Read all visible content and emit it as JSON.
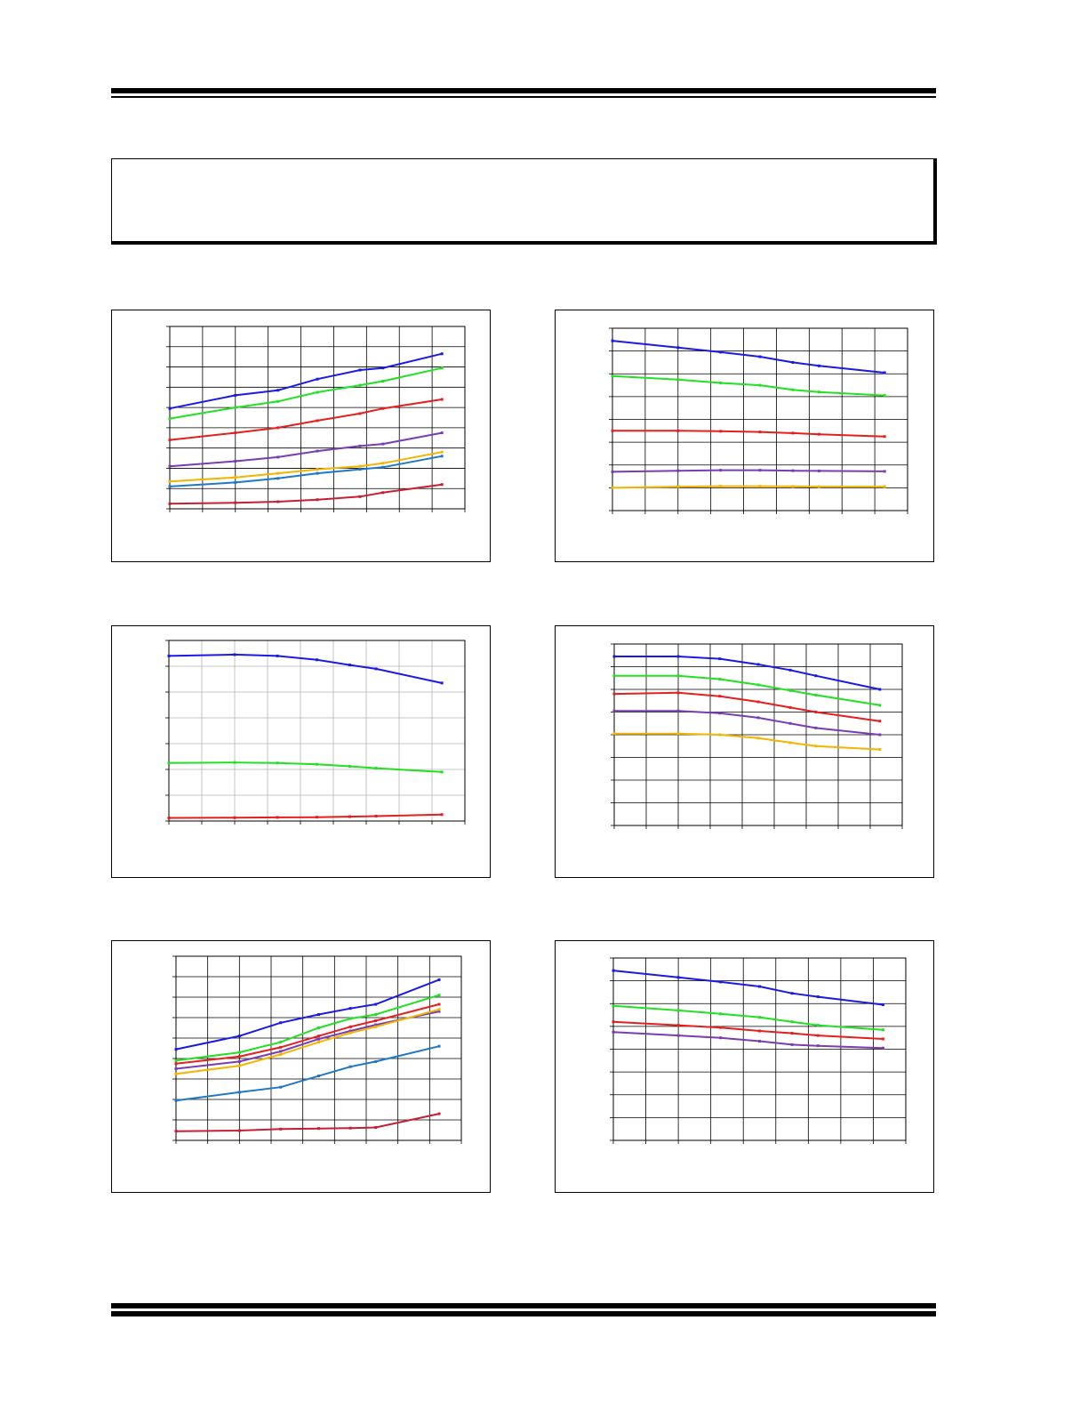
{
  "page": {
    "header_text": "",
    "note_text": "",
    "footer_text": ""
  },
  "colors": {
    "blue": "#1a1ae6",
    "green": "#22e022",
    "red": "#e61e1e",
    "purple": "#7a3cb4",
    "orange": "#f5b400",
    "steel": "#1e78c8",
    "darkred": "#c81e32",
    "grid": "#000000",
    "grid_light": "#b4b4b4"
  },
  "chart_data": [
    {
      "type": "line",
      "xlim": [
        0,
        9
      ],
      "ylim": [
        0,
        9
      ],
      "x_divisions": 9,
      "y_divisions": 9,
      "grid": "on",
      "grid_style": "dark",
      "series": [
        {
          "color": "blue",
          "x": [
            0,
            2,
            3.3,
            4.5,
            5.8,
            6.5,
            8.3
          ],
          "y": [
            4.95,
            5.6,
            5.85,
            6.4,
            6.85,
            6.95,
            7.65
          ]
        },
        {
          "color": "green",
          "x": [
            0,
            2,
            3.3,
            4.5,
            5.8,
            6.5,
            8.3
          ],
          "y": [
            4.45,
            5.0,
            5.3,
            5.75,
            6.1,
            6.3,
            6.95
          ]
        },
        {
          "color": "red",
          "x": [
            0,
            2,
            3.3,
            4.5,
            5.8,
            6.5,
            8.3
          ],
          "y": [
            3.4,
            3.75,
            4.0,
            4.35,
            4.7,
            4.95,
            5.4
          ]
        },
        {
          "color": "purple",
          "x": [
            0,
            2,
            3.3,
            4.5,
            5.8,
            6.5,
            8.3
          ],
          "y": [
            2.1,
            2.35,
            2.55,
            2.85,
            3.1,
            3.2,
            3.75
          ]
        },
        {
          "color": "orange",
          "x": [
            0,
            2,
            3.3,
            4.5,
            5.8,
            6.5,
            8.3
          ],
          "y": [
            1.35,
            1.55,
            1.75,
            1.95,
            2.1,
            2.25,
            2.8
          ]
        },
        {
          "color": "steel",
          "x": [
            0,
            2,
            3.3,
            4.5,
            5.8,
            6.5,
            8.3
          ],
          "y": [
            1.1,
            1.3,
            1.5,
            1.75,
            1.95,
            2.05,
            2.6
          ]
        },
        {
          "color": "darkred",
          "x": [
            0,
            2,
            3.3,
            4.5,
            5.8,
            6.5,
            8.3
          ],
          "y": [
            0.25,
            0.3,
            0.35,
            0.45,
            0.6,
            0.8,
            1.2
          ]
        }
      ]
    },
    {
      "type": "line",
      "xlim": [
        0,
        9
      ],
      "ylim": [
        0,
        8
      ],
      "x_divisions": 9,
      "y_divisions": 8,
      "grid": "on",
      "grid_style": "dark",
      "series": [
        {
          "color": "blue",
          "x": [
            0,
            2,
            3.3,
            4.5,
            5.5,
            6.3,
            8.3
          ],
          "y": [
            7.45,
            7.15,
            6.95,
            6.75,
            6.5,
            6.35,
            6.05
          ]
        },
        {
          "color": "green",
          "x": [
            0,
            2,
            3.3,
            4.5,
            5.5,
            6.3,
            8.3
          ],
          "y": [
            5.9,
            5.75,
            5.6,
            5.5,
            5.3,
            5.2,
            5.05
          ]
        },
        {
          "color": "red",
          "x": [
            0,
            2,
            3.3,
            4.5,
            5.5,
            6.3,
            8.3
          ],
          "y": [
            3.5,
            3.5,
            3.48,
            3.45,
            3.4,
            3.35,
            3.25
          ]
        },
        {
          "color": "purple",
          "x": [
            0,
            2,
            3.3,
            4.5,
            5.5,
            6.3,
            8.3
          ],
          "y": [
            1.7,
            1.75,
            1.77,
            1.77,
            1.75,
            1.74,
            1.72
          ]
        },
        {
          "color": "orange",
          "x": [
            0,
            2,
            3.3,
            4.5,
            5.5,
            6.3,
            8.3
          ],
          "y": [
            1.0,
            1.05,
            1.07,
            1.07,
            1.06,
            1.05,
            1.05
          ]
        }
      ]
    },
    {
      "type": "line",
      "xlim": [
        0,
        9
      ],
      "ylim": [
        0,
        7
      ],
      "x_divisions": 9,
      "y_divisions": 7,
      "grid": "on",
      "grid_style": "light",
      "series": [
        {
          "color": "blue",
          "x": [
            0,
            2,
            3.3,
            4.5,
            5.5,
            6.3,
            8.3
          ],
          "y": [
            6.4,
            6.45,
            6.4,
            6.25,
            6.05,
            5.9,
            5.35
          ]
        },
        {
          "color": "green",
          "x": [
            0,
            2,
            3.3,
            4.5,
            5.5,
            6.3,
            8.3
          ],
          "y": [
            2.25,
            2.27,
            2.25,
            2.2,
            2.12,
            2.05,
            1.9
          ]
        },
        {
          "color": "red",
          "x": [
            0,
            2,
            3.3,
            4.5,
            5.5,
            6.3,
            8.3
          ],
          "y": [
            0.12,
            0.13,
            0.14,
            0.15,
            0.17,
            0.19,
            0.25
          ]
        }
      ]
    },
    {
      "type": "line",
      "xlim": [
        0,
        9
      ],
      "ylim": [
        0,
        8
      ],
      "x_divisions": 9,
      "y_divisions": 8,
      "grid": "on",
      "grid_style": "dark",
      "series": [
        {
          "color": "blue",
          "x": [
            0,
            2,
            3.3,
            4.5,
            5.5,
            6.3,
            8.3
          ],
          "y": [
            7.45,
            7.45,
            7.35,
            7.1,
            6.85,
            6.6,
            6.0
          ]
        },
        {
          "color": "green",
          "x": [
            0,
            2,
            3.3,
            4.5,
            5.5,
            6.3,
            8.3
          ],
          "y": [
            6.6,
            6.6,
            6.45,
            6.2,
            5.95,
            5.75,
            5.3
          ]
        },
        {
          "color": "red",
          "x": [
            0,
            2,
            3.3,
            4.5,
            5.5,
            6.3,
            8.3
          ],
          "y": [
            5.8,
            5.85,
            5.7,
            5.45,
            5.2,
            5.0,
            4.6
          ]
        },
        {
          "color": "purple",
          "x": [
            0,
            2,
            3.3,
            4.5,
            5.5,
            6.3,
            8.3
          ],
          "y": [
            5.05,
            5.05,
            4.95,
            4.75,
            4.5,
            4.3,
            4.0
          ]
        },
        {
          "color": "orange",
          "x": [
            0,
            2,
            3.3,
            4.5,
            5.5,
            6.3,
            8.3
          ],
          "y": [
            4.05,
            4.05,
            4.0,
            3.85,
            3.65,
            3.5,
            3.35
          ]
        }
      ]
    },
    {
      "type": "line",
      "xlim": [
        0,
        9
      ],
      "ylim": [
        0,
        9
      ],
      "x_divisions": 9,
      "y_divisions": 9,
      "grid": "on",
      "grid_style": "dark",
      "series": [
        {
          "color": "blue",
          "x": [
            0,
            2,
            3.3,
            4.5,
            5.5,
            6.3,
            8.3
          ],
          "y": [
            4.45,
            5.1,
            5.75,
            6.15,
            6.45,
            6.65,
            7.85
          ]
        },
        {
          "color": "green",
          "x": [
            0,
            2,
            3.3,
            4.5,
            5.5,
            6.3,
            8.3
          ],
          "y": [
            3.9,
            4.3,
            4.8,
            5.5,
            5.95,
            6.15,
            7.1
          ]
        },
        {
          "color": "red",
          "x": [
            0,
            2,
            3.3,
            4.5,
            5.5,
            6.3,
            8.3
          ],
          "y": [
            3.75,
            4.1,
            4.55,
            5.1,
            5.55,
            5.85,
            6.65
          ]
        },
        {
          "color": "purple",
          "x": [
            0,
            2,
            3.3,
            4.5,
            5.5,
            6.3,
            8.3
          ],
          "y": [
            3.5,
            3.85,
            4.35,
            4.95,
            5.35,
            5.65,
            6.3
          ]
        },
        {
          "color": "orange",
          "x": [
            0,
            2,
            3.3,
            4.5,
            5.5,
            6.3,
            8.3
          ],
          "y": [
            3.25,
            3.65,
            4.2,
            4.8,
            5.25,
            5.55,
            6.4
          ]
        },
        {
          "color": "steel",
          "x": [
            0,
            2,
            3.3,
            4.5,
            5.5,
            6.3,
            8.3
          ],
          "y": [
            1.95,
            2.35,
            2.6,
            3.15,
            3.6,
            3.85,
            4.6
          ]
        },
        {
          "color": "darkred",
          "x": [
            0,
            2,
            3.3,
            4.5,
            5.5,
            6.3,
            8.3
          ],
          "y": [
            0.45,
            0.48,
            0.55,
            0.58,
            0.6,
            0.63,
            1.3
          ]
        }
      ]
    },
    {
      "type": "line",
      "xlim": [
        0,
        9
      ],
      "ylim": [
        0,
        8
      ],
      "x_divisions": 9,
      "y_divisions": 8,
      "grid": "on",
      "grid_style": "dark",
      "series": [
        {
          "color": "blue",
          "x": [
            0,
            2,
            3.3,
            4.5,
            5.5,
            6.3,
            8.3
          ],
          "y": [
            7.45,
            7.15,
            6.95,
            6.75,
            6.45,
            6.3,
            5.95
          ]
        },
        {
          "color": "green",
          "x": [
            0,
            2,
            3.3,
            4.5,
            5.5,
            6.3,
            8.3
          ],
          "y": [
            5.9,
            5.7,
            5.55,
            5.4,
            5.2,
            5.05,
            4.85
          ]
        },
        {
          "color": "red",
          "x": [
            0,
            2,
            3.3,
            4.5,
            5.5,
            6.3,
            8.3
          ],
          "y": [
            5.2,
            5.05,
            4.95,
            4.8,
            4.7,
            4.6,
            4.45
          ]
        },
        {
          "color": "purple",
          "x": [
            0,
            2,
            3.3,
            4.5,
            5.5,
            6.3,
            8.3
          ],
          "y": [
            4.75,
            4.6,
            4.5,
            4.35,
            4.2,
            4.15,
            4.05
          ]
        }
      ]
    }
  ]
}
